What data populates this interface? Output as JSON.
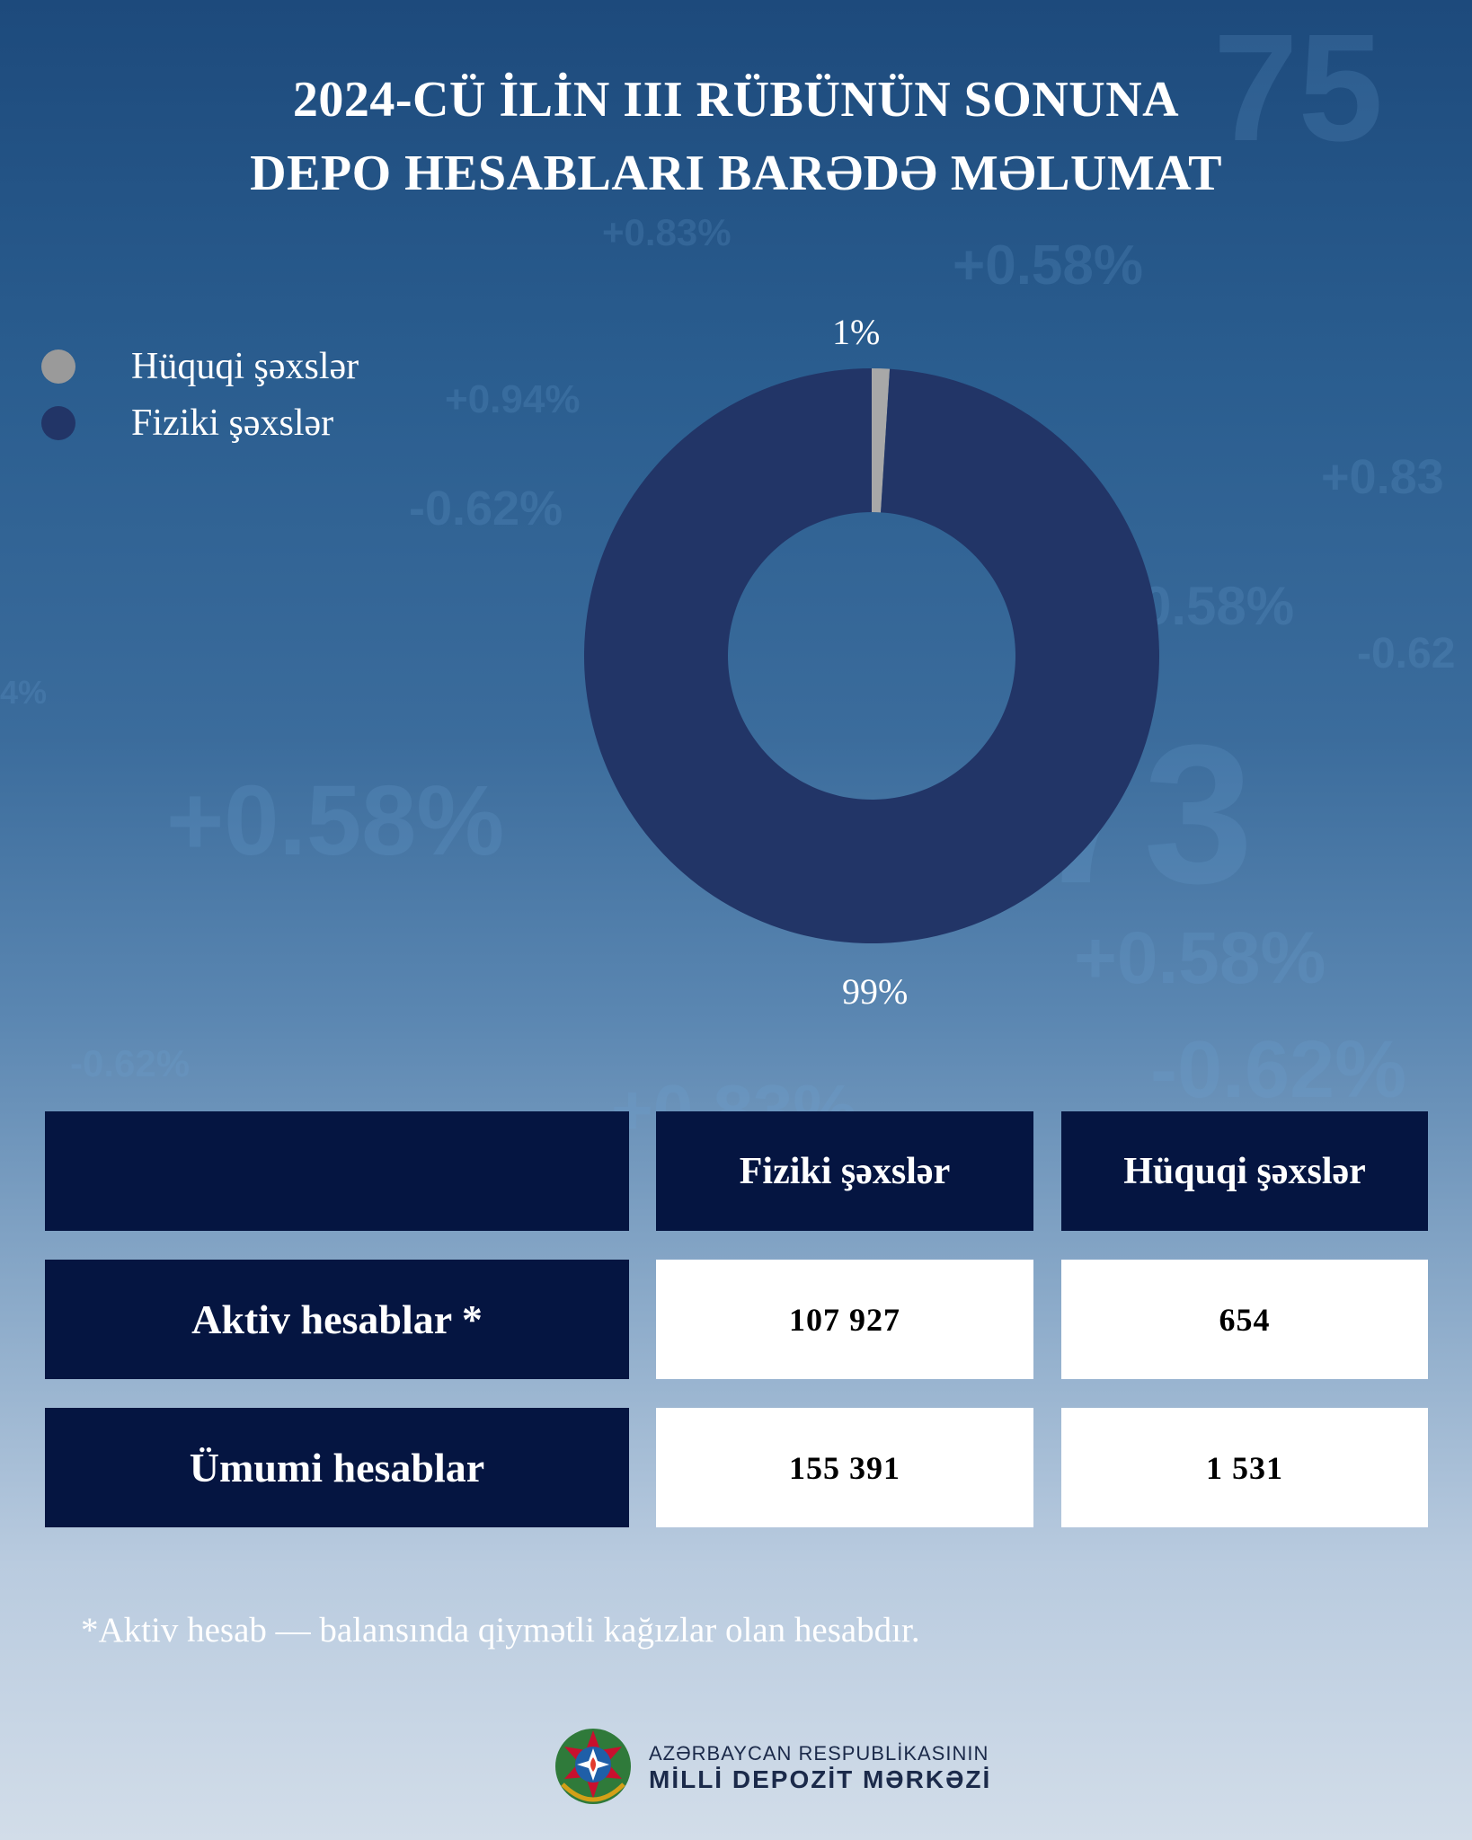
{
  "title": {
    "line1": "2024-CÜ İLİN III RÜBÜNÜN SONUNA",
    "line2": "DEPO HESABLARI BARƏDƏ MƏLUMAT"
  },
  "legend": [
    {
      "label": "Hüquqi şəxslər",
      "color": "#9a9a9a"
    },
    {
      "label": "Fiziki şəxslər",
      "color": "#223567"
    }
  ],
  "chart_data": {
    "type": "pie",
    "subtype": "donut",
    "slices": [
      {
        "name": "Hüquqi şəxslər",
        "value": 1,
        "label": "1%",
        "color": "#a8a8a8"
      },
      {
        "name": "Fiziki şəxslər",
        "value": 99,
        "label": "99%",
        "color": "#223567"
      }
    ],
    "legend_position": "top-left"
  },
  "table": {
    "columns": [
      "",
      "Fiziki şəxslər",
      "Hüquqi şəxslər"
    ],
    "rows": [
      {
        "label": "Aktiv hesablar *",
        "fiziki": "107 927",
        "huquqi": "654"
      },
      {
        "label": "Ümumi hesablar",
        "fiziki": "155 391",
        "huquqi": "1 531"
      }
    ]
  },
  "footnote": "*Aktiv hesab — balansında qiymətli kağızlar olan hesabdır.",
  "logo": {
    "line1": "AZƏRBAYCAN RESPUBLİKASININ",
    "line2": "MİLLİ DEPOZİT MƏRKƏZİ"
  }
}
